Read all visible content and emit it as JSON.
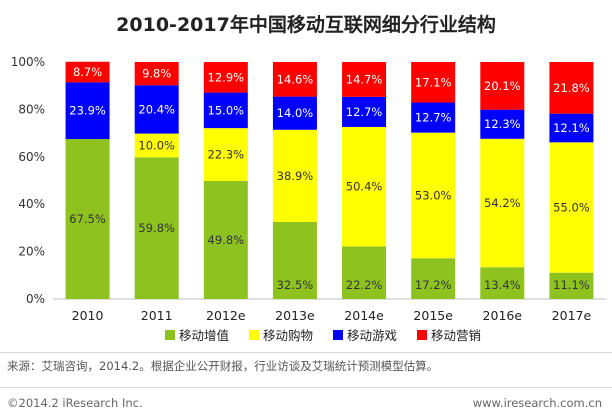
{
  "colors": {
    "games": "#0000ff",
    "marketing": "#ff0000",
    "services": "#8dc21f",
    "shopping": "#ffff00"
  },
  "chart_data": {
    "type": "bar",
    "stacked": true,
    "title": "2010-2017年中国移动互联网细分行业结构",
    "categories": [
      "2010",
      "2011",
      "2012e",
      "2013e",
      "2014e",
      "2015e",
      "2016e",
      "2017e"
    ],
    "ylim": [
      0,
      100
    ],
    "yticks": [
      "0%",
      "20%",
      "40%",
      "60%",
      "80%",
      "100%"
    ],
    "legend_position": "bottom",
    "series": [
      {
        "name": "移动增值",
        "color": "#8dc21f",
        "values": [
          67.5,
          59.8,
          49.8,
          32.5,
          22.2,
          17.2,
          13.4,
          11.1
        ],
        "labels": [
          "67.5%",
          "59.8%",
          "49.8%",
          "32.5%",
          "22.2%",
          "17.2%",
          "13.4%",
          "11.1%"
        ]
      },
      {
        "name": "移动购物",
        "color": "#ffff00",
        "values": [
          0,
          10.0,
          22.3,
          38.9,
          50.4,
          53.0,
          54.2,
          55.0
        ],
        "labels": [
          "",
          "10.0%",
          "22.3%",
          "38.9%",
          "50.4%",
          "53.0%",
          "54.2%",
          "55.0%"
        ]
      },
      {
        "name": "移动游戏",
        "color": "#0000ff",
        "values": [
          23.9,
          20.4,
          15.0,
          14.0,
          12.7,
          12.7,
          12.3,
          12.1
        ],
        "labels": [
          "23.9%",
          "20.4%",
          "15.0%",
          "14.0%",
          "12.7%",
          "12.7%",
          "12.3%",
          "12.1%"
        ]
      },
      {
        "name": "移动营销",
        "color": "#ff0000",
        "values": [
          8.7,
          9.8,
          12.9,
          14.6,
          14.7,
          17.1,
          20.1,
          21.8
        ],
        "labels": [
          "8.7%",
          "9.8%",
          "12.9%",
          "14.6%",
          "14.7%",
          "17.1%",
          "20.1%",
          "21.8%"
        ]
      }
    ]
  },
  "footer": {
    "source": "来源：艾瑞咨询，2014.2。根据企业公开财报，行业访谈及艾瑞统计预测模型估算。",
    "copyright": "©2014.2 iResearch Inc.",
    "url": "www.iresearch.com.cn"
  }
}
